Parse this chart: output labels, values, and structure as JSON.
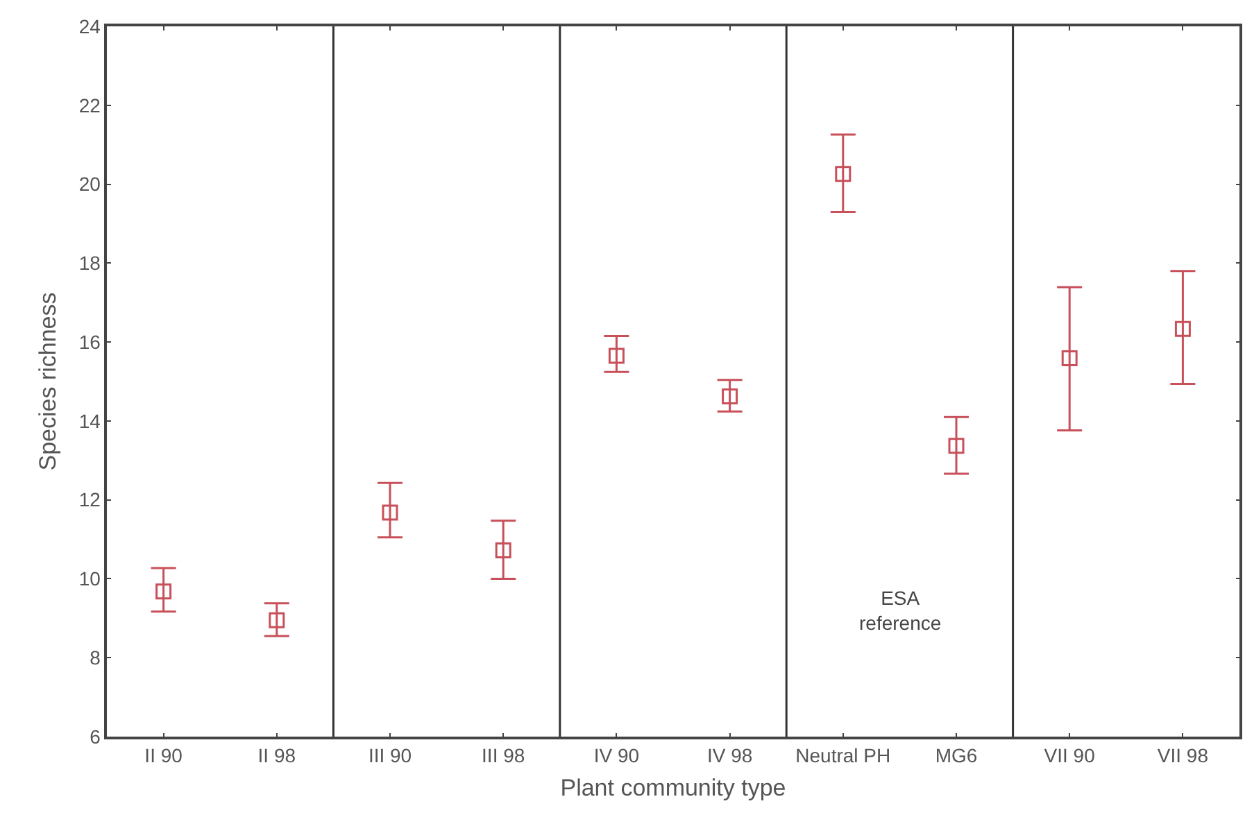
{
  "chart_data": {
    "type": "scatter",
    "xlabel": "Plant community type",
    "ylabel": "Species richness",
    "categories": [
      "II 90",
      "II 98",
      "III 90",
      "III 98",
      "IV 90",
      "IV 98",
      "Neutral PH",
      "MG6",
      "VII 90",
      "VII 98"
    ],
    "series": [
      {
        "color": "#c8505a",
        "values": [
          9.68,
          8.95,
          11.68,
          10.72,
          15.65,
          14.62,
          20.26,
          13.37,
          15.59,
          16.33
        ],
        "errors": [
          [
            9.17,
            10.27
          ],
          [
            8.55,
            9.38
          ],
          [
            11.05,
            12.43
          ],
          [
            10.0,
            11.47
          ],
          [
            15.24,
            16.15
          ],
          [
            14.24,
            15.04
          ],
          [
            19.3,
            21.26
          ],
          [
            12.66,
            14.1
          ],
          [
            13.76,
            17.39
          ],
          [
            14.94,
            17.8
          ]
        ]
      }
    ],
    "ylim": [
      6,
      24
    ],
    "yticks": [
      6,
      8,
      10,
      12,
      14,
      16,
      18,
      20,
      22,
      24
    ],
    "marker": "square",
    "annotations": [
      "ESA\nreference"
    ]
  }
}
